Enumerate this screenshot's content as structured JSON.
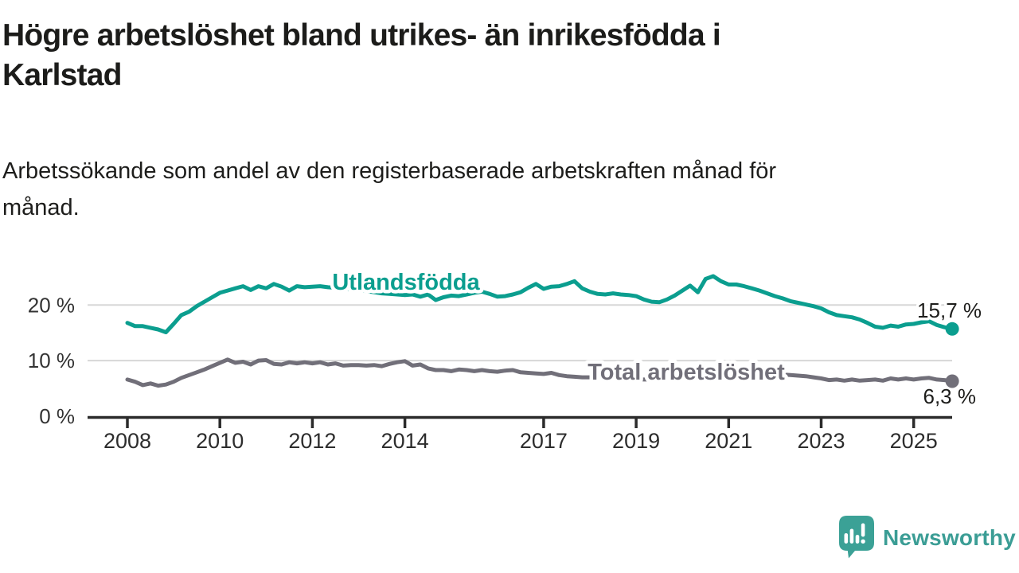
{
  "header": {
    "title_lines": [
      "Högre arbetslöshet bland utrikes- än inrikesfödda i",
      "Karlstad"
    ],
    "subtitle_lines": [
      "Arbetssökande som andel av den registerbaserade arbetskraften månad för",
      "månad."
    ]
  },
  "branding": {
    "logo_text": "Newsworthy",
    "logo_color": "#3b9d95"
  },
  "chart_data": {
    "type": "line",
    "title": "Högre arbetslöshet bland utrikes- än inrikesfödda i Karlstad",
    "subtitle": "Arbetssökande som andel av den registerbaserade arbetskraften månad för månad.",
    "x_unit": "years, monthly observations",
    "x_start_year": 2008,
    "x_step_months": 2,
    "x_range": [
      2008.0,
      2025.83
    ],
    "x_ticks": [
      2008,
      2010,
      2012,
      2014,
      2017,
      2019,
      2021,
      2023,
      2025
    ],
    "y_ticks": [
      {
        "value": 0,
        "label": "0 %"
      },
      {
        "value": 10,
        "label": "10 %"
      },
      {
        "value": 20,
        "label": "20 %"
      }
    ],
    "ylim": [
      0,
      27
    ],
    "grid": true,
    "legend_position": "inline-labels",
    "series": [
      {
        "name": "Utlandsfödda",
        "color": "#0b9e8f",
        "end_value": 15.7,
        "end_label": "15,7 %",
        "values": [
          16.8,
          16.2,
          16.2,
          15.9,
          15.6,
          15.1,
          16.6,
          18.2,
          18.8,
          19.8,
          20.6,
          21.4,
          22.2,
          22.6,
          23.0,
          23.4,
          22.7,
          23.4,
          23.0,
          23.8,
          23.3,
          22.6,
          23.4,
          23.2,
          23.3,
          23.4,
          23.2,
          23.1,
          22.9,
          22.8,
          22.7,
          22.5,
          22.3,
          22.1,
          22.0,
          21.9,
          21.8,
          21.9,
          21.5,
          21.9,
          20.9,
          21.4,
          21.7,
          21.6,
          21.9,
          22.2,
          22.4,
          22.0,
          21.5,
          21.6,
          21.9,
          22.3,
          23.1,
          23.8,
          22.9,
          23.3,
          23.4,
          23.8,
          24.3,
          23.0,
          22.4,
          22.0,
          21.9,
          22.1,
          21.9,
          21.8,
          21.6,
          21.0,
          20.6,
          20.5,
          21.0,
          21.7,
          22.6,
          23.5,
          22.3,
          24.7,
          25.2,
          24.3,
          23.7,
          23.7,
          23.4,
          23.0,
          22.6,
          22.1,
          21.6,
          21.2,
          20.7,
          20.4,
          20.1,
          19.8,
          19.4,
          18.7,
          18.2,
          18.0,
          17.8,
          17.4,
          16.8,
          16.1,
          15.9,
          16.3,
          16.1,
          16.5,
          16.6,
          16.9,
          17.1,
          16.4,
          16.0,
          15.7
        ]
      },
      {
        "name": "Total arbetslöshet",
        "color": "#716f79",
        "end_value": 6.3,
        "end_label": "6,3 %",
        "values": [
          6.6,
          6.2,
          5.6,
          5.9,
          5.5,
          5.7,
          6.2,
          6.9,
          7.4,
          7.9,
          8.4,
          9.0,
          9.6,
          10.2,
          9.6,
          9.8,
          9.3,
          10.0,
          10.1,
          9.4,
          9.3,
          9.7,
          9.5,
          9.7,
          9.5,
          9.7,
          9.3,
          9.5,
          9.1,
          9.2,
          9.2,
          9.1,
          9.2,
          9.0,
          9.4,
          9.7,
          9.9,
          9.1,
          9.3,
          8.6,
          8.3,
          8.3,
          8.1,
          8.4,
          8.3,
          8.1,
          8.3,
          8.1,
          8.0,
          8.2,
          8.3,
          7.9,
          7.8,
          7.7,
          7.6,
          7.8,
          7.4,
          7.2,
          7.1,
          7.0,
          7.0,
          6.9,
          6.9,
          6.8,
          6.8,
          6.7,
          6.7,
          6.6,
          6.6,
          6.7,
          6.8,
          7.0,
          7.3,
          7.9,
          8.6,
          8.8,
          8.7,
          8.5,
          8.4,
          8.2,
          8.0,
          7.9,
          7.8,
          7.7,
          7.6,
          7.5,
          7.4,
          7.3,
          7.2,
          7.0,
          6.8,
          6.5,
          6.6,
          6.4,
          6.6,
          6.4,
          6.5,
          6.6,
          6.4,
          6.8,
          6.6,
          6.8,
          6.6,
          6.8,
          6.9,
          6.6,
          6.5,
          6.3
        ]
      }
    ]
  }
}
